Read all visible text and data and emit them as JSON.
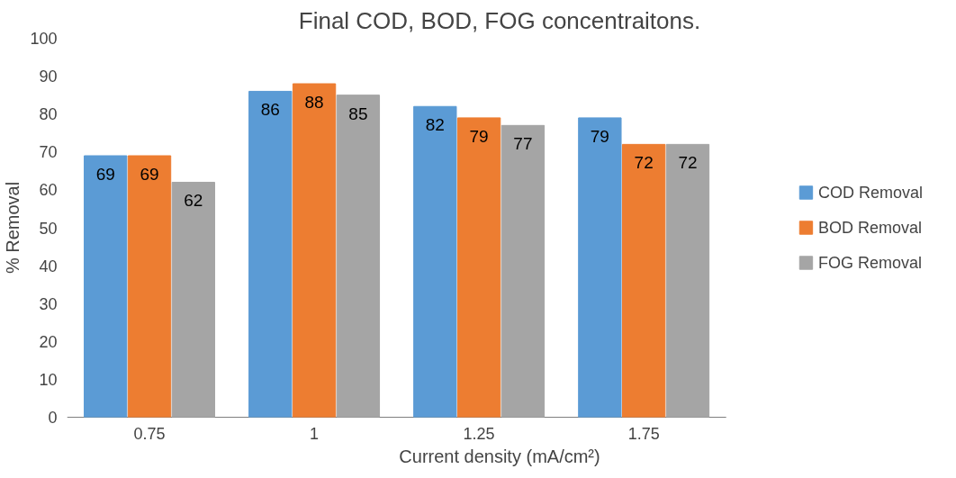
{
  "chart_data": {
    "type": "bar",
    "title": "Final COD, BOD, FOG concentraitons.",
    "xlabel": "Current density (mA/cm²)",
    "ylabel": "% Removal",
    "categories": [
      "0.75",
      "1",
      "1.25",
      "1.75"
    ],
    "series": [
      {
        "name": "COD Removal",
        "color": "#5b9bd5",
        "values": [
          69,
          86,
          82,
          79
        ]
      },
      {
        "name": "BOD Removal",
        "color": "#ed7d31",
        "values": [
          69,
          88,
          79,
          72
        ]
      },
      {
        "name": "FOG Removal",
        "color": "#a5a5a5",
        "values": [
          62,
          85,
          77,
          72
        ]
      }
    ],
    "ylim": [
      0,
      100
    ],
    "yticks": [
      0,
      10,
      20,
      30,
      40,
      50,
      60,
      70,
      80,
      90,
      100
    ],
    "data_labels": true,
    "legend": "right",
    "grid": false
  }
}
